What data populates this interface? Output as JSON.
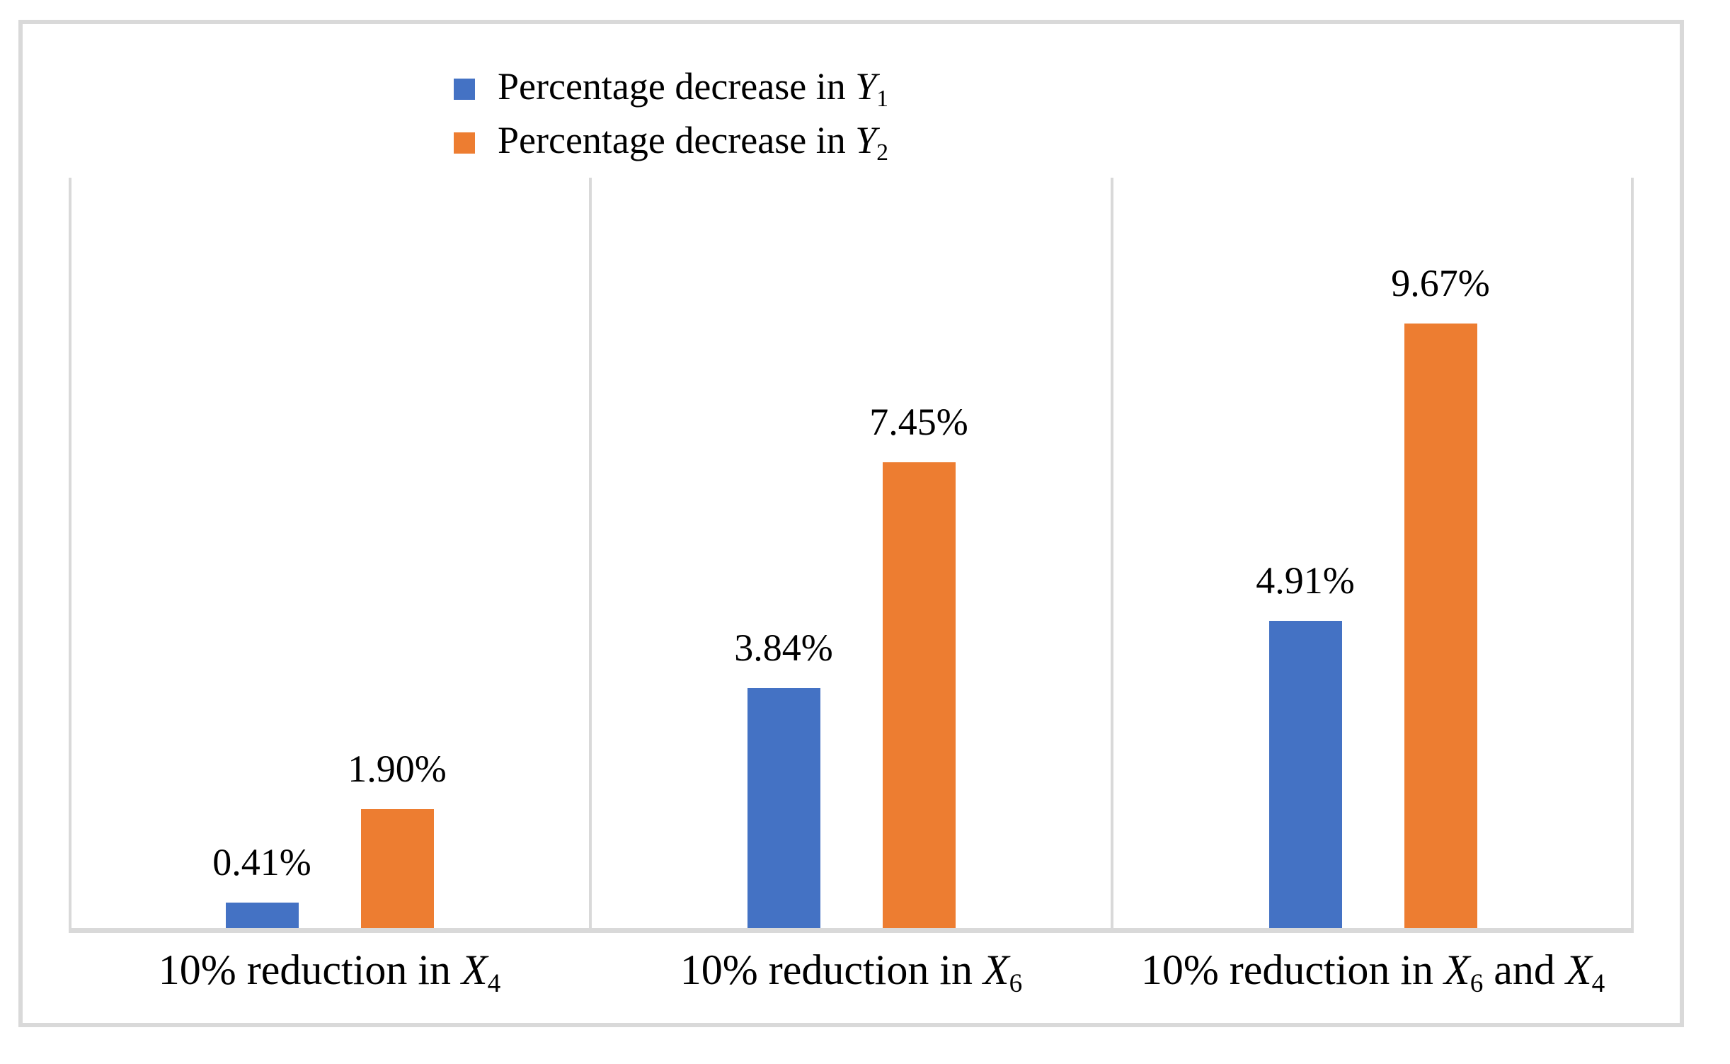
{
  "chart_data": {
    "type": "bar",
    "title": "",
    "xlabel": "",
    "ylabel": "",
    "categories": [
      "10% reduction in X4",
      "10% reduction in X6",
      "10% reduction in X6 and X4"
    ],
    "series": [
      {
        "name": "Percentage decrease in Y1",
        "values": [
          0.41,
          3.84,
          4.91
        ],
        "value_labels": [
          "0.41%",
          "3.84%",
          "4.91%"
        ],
        "color": "#4472C4"
      },
      {
        "name": "Percentage decrease in Y2",
        "values": [
          1.9,
          7.45,
          9.67
        ],
        "value_labels": [
          "1.90%",
          "7.45%",
          "9.67%"
        ],
        "color": "#ED7D31"
      }
    ],
    "ylim": [
      0,
      12
    ],
    "y_axis_labels_visible": false,
    "grid": "vertical-category-separators",
    "legend_position": "top-center",
    "data_labels_visible": true
  },
  "rich_text": {
    "legend": [
      {
        "segments": [
          {
            "t": "Percentage decrease in "
          },
          {
            "t": "Y",
            "style": "var"
          },
          {
            "t": "1",
            "style": "sub"
          }
        ]
      },
      {
        "segments": [
          {
            "t": "Percentage decrease in "
          },
          {
            "t": "Y",
            "style": "var"
          },
          {
            "t": "2",
            "style": "sub"
          }
        ]
      }
    ],
    "categories": [
      {
        "segments": [
          {
            "t": "10% reduction in "
          },
          {
            "t": "X",
            "style": "var"
          },
          {
            "t": "4",
            "style": "sub"
          }
        ]
      },
      {
        "segments": [
          {
            "t": "10% reduction in "
          },
          {
            "t": "X",
            "style": "var"
          },
          {
            "t": "6",
            "style": "sub"
          }
        ]
      },
      {
        "segments": [
          {
            "t": "10% reduction in "
          },
          {
            "t": "X",
            "style": "var"
          },
          {
            "t": "6",
            "style": "sub"
          },
          {
            "t": " and "
          },
          {
            "t": "X",
            "style": "var"
          },
          {
            "t": "4",
            "style": "sub"
          }
        ]
      }
    ]
  },
  "colors": {
    "series1": "#4472C4",
    "series2": "#ED7D31",
    "axis_lines": "#d9d9d9",
    "outer_frame": "#d9d9d9",
    "background": "#ffffff",
    "text": "#000000"
  }
}
